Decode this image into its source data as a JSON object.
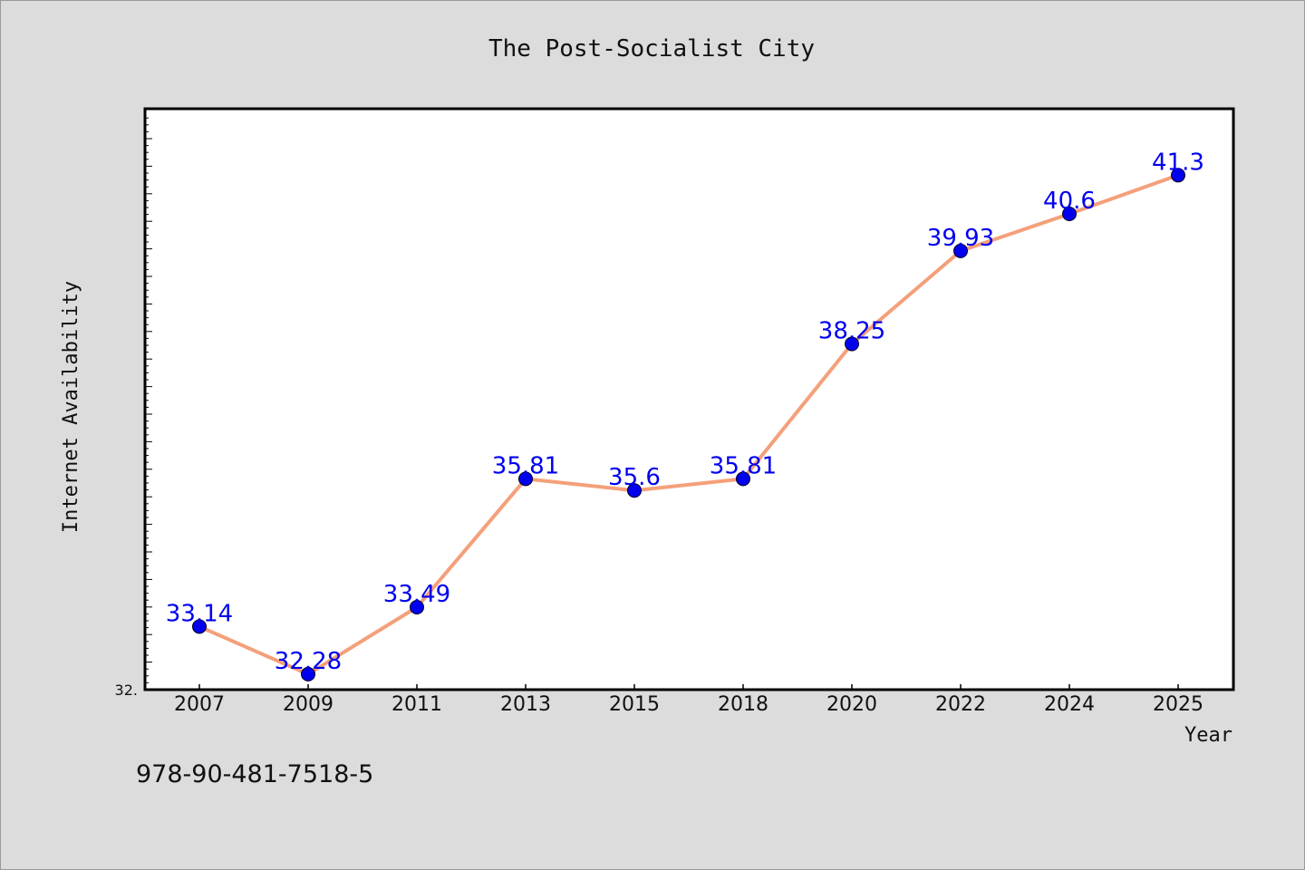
{
  "chart_data": {
    "type": "line",
    "title": "The Post-Socialist City",
    "xlabel": "Year",
    "ylabel": "Internet Availability",
    "categories": [
      "2007",
      "2009",
      "2011",
      "2013",
      "2015",
      "2018",
      "2020",
      "2022",
      "2024",
      "2025"
    ],
    "series": [
      {
        "values": [
          33.14,
          32.28,
          33.49,
          35.81,
          35.6,
          35.81,
          38.25,
          39.93,
          40.6,
          41.3
        ],
        "data_labels": [
          "33.14",
          "32.28",
          "33.49",
          "35.81",
          "35.6",
          "35.81",
          "38.25",
          "39.93",
          "40.6",
          "41.3"
        ],
        "line_color": "#f4a07a",
        "marker_color": "#0000ee",
        "label_color": "#0000ee"
      }
    ],
    "y_axis_label": "32.",
    "ylim": [
      32.0,
      42.5
    ],
    "grid": false,
    "legend": "none"
  },
  "footer_text": "978-90-481-7518-5"
}
